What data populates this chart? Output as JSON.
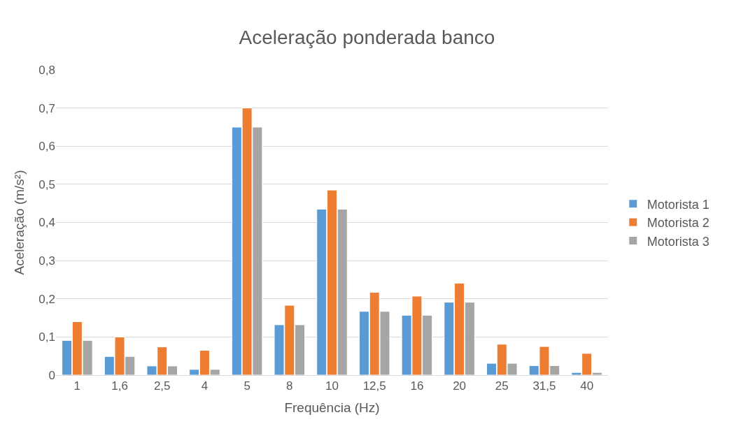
{
  "chart_data": {
    "type": "bar",
    "title": "Aceleração ponderada banco",
    "xlabel": "Frequência (Hz)",
    "ylabel": "Aceleração (m/s²)",
    "categories": [
      "1",
      "1,6",
      "2,5",
      "4",
      "5",
      "8",
      "10",
      "12,5",
      "16",
      "20",
      "25",
      "31,5",
      "40"
    ],
    "series": [
      {
        "name": "Motorista 1",
        "color": "#5b9bd5",
        "values": [
          0.091,
          0.049,
          0.024,
          0.015,
          0.65,
          0.132,
          0.435,
          0.167,
          0.157,
          0.191,
          0.031,
          0.025,
          0.007
        ]
      },
      {
        "name": "Motorista 2",
        "color": "#ed7d31",
        "values": [
          0.14,
          0.1,
          0.074,
          0.065,
          0.7,
          0.183,
          0.485,
          0.217,
          0.207,
          0.241,
          0.081,
          0.075,
          0.057
        ]
      },
      {
        "name": "Motorista 3",
        "color": "#a5a5a5",
        "values": [
          0.091,
          0.049,
          0.024,
          0.015,
          0.65,
          0.132,
          0.435,
          0.167,
          0.157,
          0.191,
          0.031,
          0.025,
          0.007
        ]
      }
    ],
    "ylim": [
      0,
      0.8
    ],
    "yticks": [
      {
        "value": 0,
        "label": "0"
      },
      {
        "value": 0.1,
        "label": "0,1"
      },
      {
        "value": 0.2,
        "label": "0,2"
      },
      {
        "value": 0.3,
        "label": "0,3"
      },
      {
        "value": 0.4,
        "label": "0,4"
      },
      {
        "value": 0.5,
        "label": "0,5"
      },
      {
        "value": 0.6,
        "label": "0,6"
      },
      {
        "value": 0.7,
        "label": "0,7"
      },
      {
        "value": 0.8,
        "label": "0,8"
      }
    ],
    "grid": "y",
    "legend": "right"
  }
}
